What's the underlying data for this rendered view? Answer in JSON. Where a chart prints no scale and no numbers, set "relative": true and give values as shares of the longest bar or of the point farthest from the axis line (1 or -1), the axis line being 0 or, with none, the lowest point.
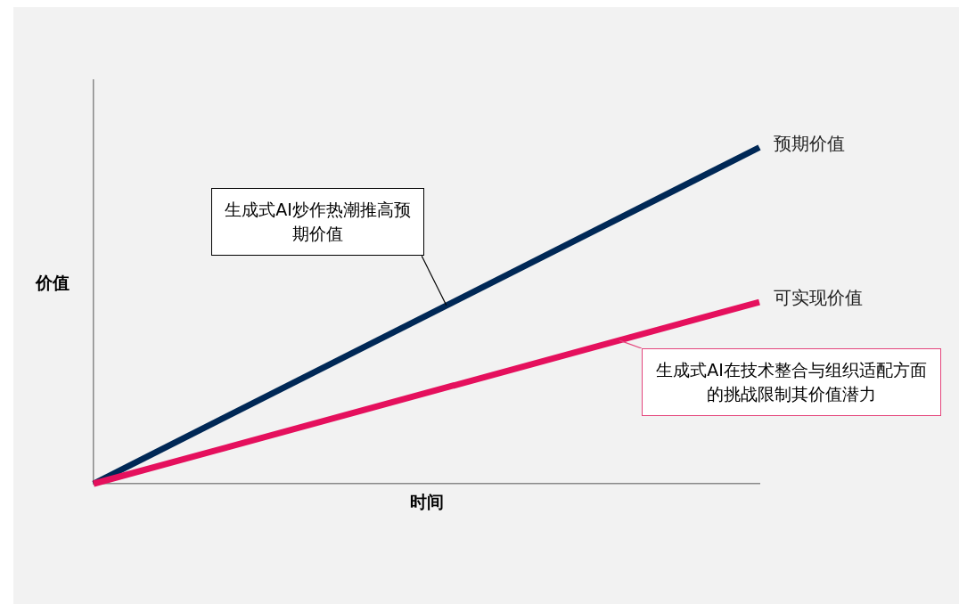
{
  "chart_data": {
    "type": "line",
    "relative": true,
    "xlabel": "时间",
    "ylabel": "价值",
    "categories": [
      null,
      null
    ],
    "series": [
      {
        "name": "可实现价值",
        "color": "#e5105d",
        "values": [
          0,
          0.54
        ]
      },
      {
        "name": "预期价值",
        "color": "#002856",
        "values": [
          0,
          1
        ]
      }
    ],
    "annotations": [
      "生成式AI炒作热潮推高预期价值",
      "生成式AI在技术整合与组织适配方面的挑战限制其价值潜力"
    ],
    "legend": false,
    "grid": false,
    "marker": "none",
    "line_style": "solid"
  }
}
